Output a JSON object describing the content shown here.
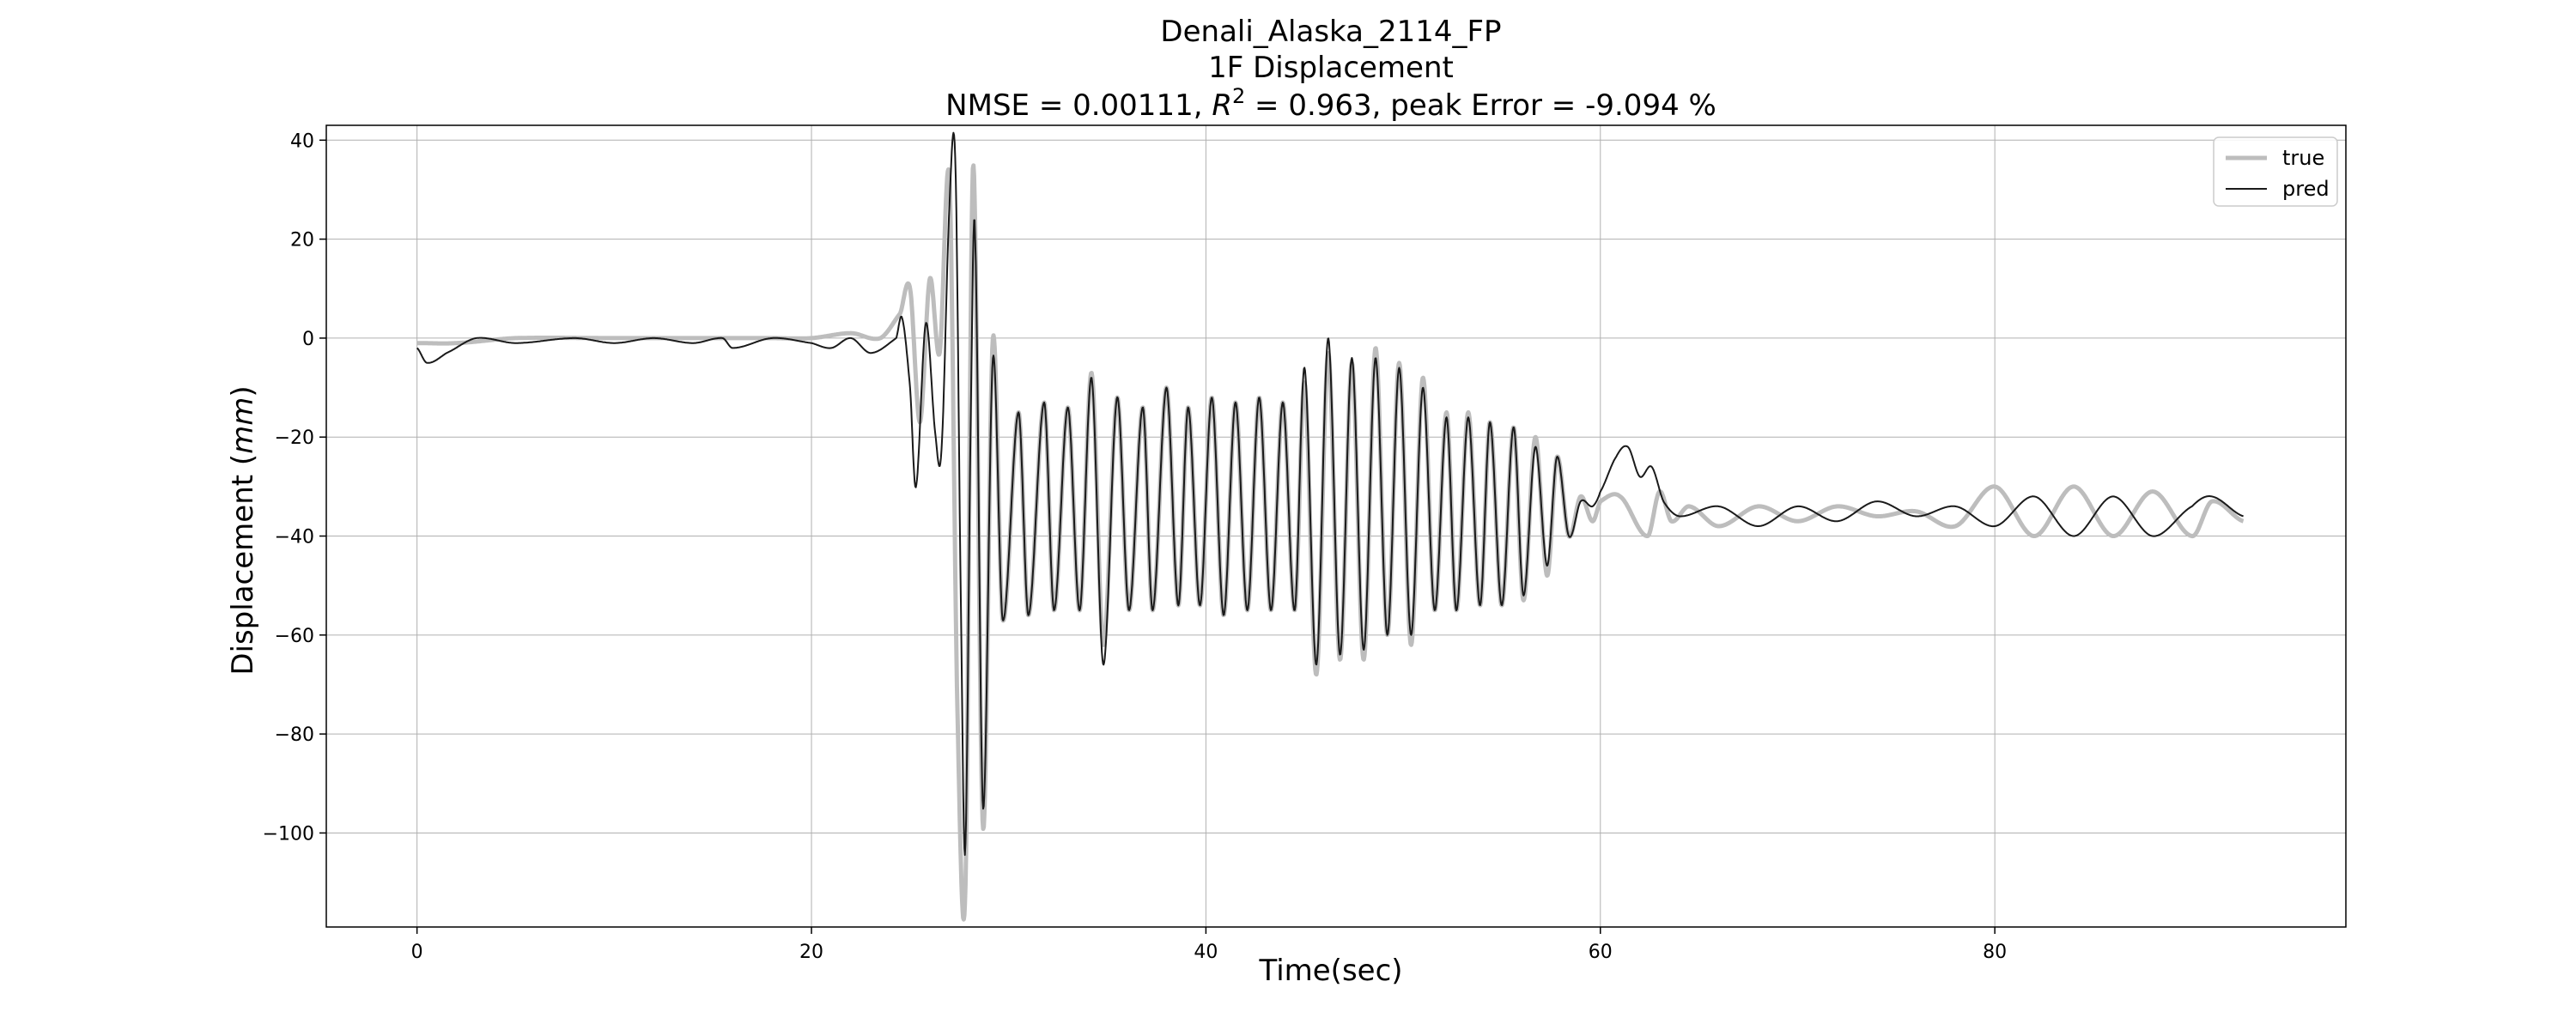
{
  "chart_data": {
    "type": "line",
    "title_lines": [
      "Denali_Alaska_2114_FP",
      "1F Displacement"
    ],
    "metrics": {
      "prefix": "NMSE = 0.00111, ",
      "r2_symbol": "R",
      "r2_superscript": "2",
      "suffix": " = 0.963, peak Error = -9.094 %"
    },
    "xlabel": "Time(sec)",
    "ylabel_prefix": "Displacement (",
    "ylabel_unit": "mm",
    "ylabel_suffix": ")",
    "xlim": [
      -4.6,
      97.8
    ],
    "ylim": [
      -119,
      43
    ],
    "x_ticks": [
      0,
      20,
      40,
      60,
      80
    ],
    "x_tick_labels": [
      "0",
      "20",
      "40",
      "60",
      "80"
    ],
    "y_ticks": [
      -100,
      -80,
      -60,
      -40,
      -20,
      0,
      20,
      40
    ],
    "y_tick_labels": [
      "−100",
      "−80",
      "−60",
      "−40",
      "−20",
      "0",
      "20",
      "40"
    ],
    "grid": true,
    "legend_position": "top-right",
    "t_end": 92.6,
    "series": [
      {
        "name": "true",
        "color": "#bdbdbd",
        "keypoints": [
          [
            0,
            -1
          ],
          [
            2,
            -1
          ],
          [
            5,
            0
          ],
          [
            10,
            0
          ],
          [
            15,
            0
          ],
          [
            18,
            0
          ],
          [
            20,
            0
          ],
          [
            22,
            1
          ],
          [
            23.5,
            0
          ],
          [
            24.5,
            5
          ],
          [
            25,
            10
          ],
          [
            25.5,
            -17
          ],
          [
            26,
            12
          ],
          [
            26.5,
            -3
          ],
          [
            27,
            32
          ],
          [
            27.4,
            -75
          ],
          [
            27.8,
            -112
          ],
          [
            28.2,
            35
          ],
          [
            28.7,
            -99
          ],
          [
            29.2,
            0
          ],
          [
            29.7,
            -57
          ],
          [
            30.5,
            -15
          ],
          [
            31,
            -56
          ],
          [
            31.8,
            -13
          ],
          [
            32.3,
            -55
          ],
          [
            33,
            -14
          ],
          [
            33.6,
            -55
          ],
          [
            34.2,
            -7
          ],
          [
            34.8,
            -62
          ],
          [
            35.5,
            -12
          ],
          [
            36.1,
            -55
          ],
          [
            36.8,
            -14
          ],
          [
            37.3,
            -55
          ],
          [
            38,
            -10
          ],
          [
            38.6,
            -54
          ],
          [
            39.1,
            -14
          ],
          [
            39.7,
            -54
          ],
          [
            40.3,
            -12
          ],
          [
            40.9,
            -56
          ],
          [
            41.5,
            -13
          ],
          [
            42.1,
            -55
          ],
          [
            42.7,
            -12
          ],
          [
            43.3,
            -55
          ],
          [
            43.9,
            -13
          ],
          [
            44.5,
            -55
          ],
          [
            45,
            -9
          ],
          [
            45.6,
            -68
          ],
          [
            46.2,
            -3
          ],
          [
            46.8,
            -65
          ],
          [
            47.4,
            -5
          ],
          [
            48,
            -65
          ],
          [
            48.6,
            -2
          ],
          [
            49.2,
            -60
          ],
          [
            49.8,
            -5
          ],
          [
            50.4,
            -62
          ],
          [
            51,
            -8
          ],
          [
            51.6,
            -55
          ],
          [
            52.2,
            -15
          ],
          [
            52.7,
            -55
          ],
          [
            53.3,
            -15
          ],
          [
            53.9,
            -54
          ],
          [
            54.4,
            -17
          ],
          [
            55,
            -54
          ],
          [
            55.6,
            -18
          ],
          [
            56.1,
            -53
          ],
          [
            56.7,
            -20
          ],
          [
            57.3,
            -48
          ],
          [
            57.8,
            -24
          ],
          [
            58.4,
            -40
          ],
          [
            59,
            -32
          ],
          [
            59.6,
            -37
          ],
          [
            60,
            -33
          ],
          [
            61,
            -32
          ],
          [
            62.4,
            -40
          ],
          [
            63,
            -31
          ],
          [
            63.6,
            -37
          ],
          [
            64.5,
            -34
          ],
          [
            66,
            -38
          ],
          [
            68,
            -34
          ],
          [
            70,
            -37
          ],
          [
            72,
            -34
          ],
          [
            74,
            -36
          ],
          [
            76,
            -35
          ],
          [
            78,
            -38
          ],
          [
            80,
            -30
          ],
          [
            82,
            -40
          ],
          [
            84,
            -30
          ],
          [
            86,
            -40
          ],
          [
            88,
            -31
          ],
          [
            90,
            -40
          ],
          [
            91,
            -33
          ],
          [
            92.6,
            -37
          ]
        ]
      },
      {
        "name": "pred",
        "color": "#1a1a1a",
        "keypoints": [
          [
            0,
            -2
          ],
          [
            0.5,
            -5
          ],
          [
            1.5,
            -3
          ],
          [
            3,
            0
          ],
          [
            5,
            -1
          ],
          [
            8,
            0
          ],
          [
            10,
            -1
          ],
          [
            12,
            0
          ],
          [
            14,
            -1
          ],
          [
            15.5,
            0
          ],
          [
            16,
            -2
          ],
          [
            18,
            0
          ],
          [
            20,
            -1
          ],
          [
            21,
            -2
          ],
          [
            22,
            0
          ],
          [
            23,
            -3
          ],
          [
            24.3,
            0
          ],
          [
            24.6,
            4
          ],
          [
            25,
            -10
          ],
          [
            25.3,
            -30
          ],
          [
            25.8,
            3
          ],
          [
            26.3,
            -20
          ],
          [
            26.6,
            -22
          ],
          [
            27,
            27
          ],
          [
            27.3,
            35
          ],
          [
            27.6,
            -60
          ],
          [
            27.8,
            -103
          ],
          [
            28.1,
            -10
          ],
          [
            28.3,
            20
          ],
          [
            28.7,
            -95
          ],
          [
            29.2,
            -4
          ],
          [
            29.7,
            -57
          ],
          [
            30.5,
            -15
          ],
          [
            31,
            -56
          ],
          [
            31.8,
            -13
          ],
          [
            32.3,
            -55
          ],
          [
            33,
            -14
          ],
          [
            33.6,
            -55
          ],
          [
            34.2,
            -8
          ],
          [
            34.8,
            -66
          ],
          [
            35.5,
            -12
          ],
          [
            36.1,
            -55
          ],
          [
            36.8,
            -14
          ],
          [
            37.3,
            -55
          ],
          [
            38,
            -10
          ],
          [
            38.6,
            -54
          ],
          [
            39.1,
            -14
          ],
          [
            39.7,
            -54
          ],
          [
            40.3,
            -12
          ],
          [
            40.9,
            -56
          ],
          [
            41.5,
            -13
          ],
          [
            42.1,
            -55
          ],
          [
            42.7,
            -12
          ],
          [
            43.3,
            -55
          ],
          [
            43.9,
            -13
          ],
          [
            44.5,
            -55
          ],
          [
            45,
            -6
          ],
          [
            45.6,
            -66
          ],
          [
            46.2,
            0
          ],
          [
            46.8,
            -64
          ],
          [
            47.4,
            -4
          ],
          [
            48,
            -63
          ],
          [
            48.6,
            -4
          ],
          [
            49.2,
            -60
          ],
          [
            49.8,
            -6
          ],
          [
            50.4,
            -60
          ],
          [
            51,
            -10
          ],
          [
            51.6,
            -55
          ],
          [
            52.2,
            -16
          ],
          [
            52.7,
            -55
          ],
          [
            53.3,
            -16
          ],
          [
            53.9,
            -54
          ],
          [
            54.4,
            -17
          ],
          [
            55,
            -54
          ],
          [
            55.6,
            -18
          ],
          [
            56.1,
            -52
          ],
          [
            56.7,
            -22
          ],
          [
            57.3,
            -46
          ],
          [
            57.8,
            -24
          ],
          [
            58.4,
            -40
          ],
          [
            59,
            -33
          ],
          [
            59.6,
            -34
          ],
          [
            60,
            -31
          ],
          [
            60.8,
            -24
          ],
          [
            61.4,
            -22
          ],
          [
            62,
            -28
          ],
          [
            62.6,
            -26
          ],
          [
            63.2,
            -33
          ],
          [
            64,
            -36
          ],
          [
            66,
            -34
          ],
          [
            68,
            -38
          ],
          [
            70,
            -34
          ],
          [
            72,
            -37
          ],
          [
            74,
            -33
          ],
          [
            76,
            -36
          ],
          [
            78,
            -34
          ],
          [
            80,
            -38
          ],
          [
            82,
            -32
          ],
          [
            84,
            -40
          ],
          [
            86,
            -32
          ],
          [
            88,
            -40
          ],
          [
            90,
            -34
          ],
          [
            91,
            -32
          ],
          [
            92.6,
            -36
          ]
        ]
      }
    ]
  }
}
